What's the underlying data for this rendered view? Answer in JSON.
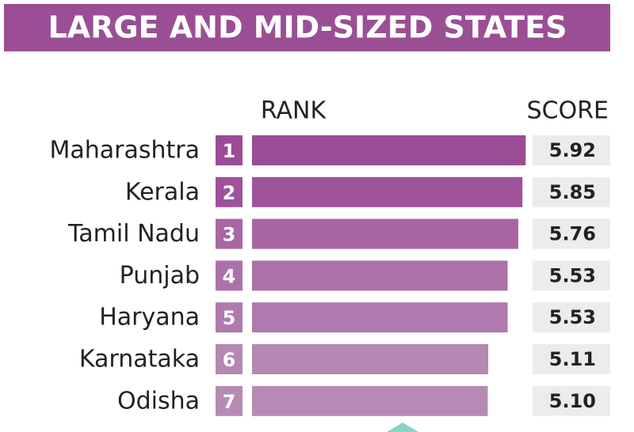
{
  "chart_data": {
    "type": "bar",
    "orientation": "horizontal",
    "title": "LARGE AND MID-SIZED STATES",
    "rank_header": "RANK",
    "score_header": "SCORE",
    "categories": [
      "Maharashtra",
      "Kerala",
      "Tamil Nadu",
      "Punjab",
      "Haryana",
      "Karnataka",
      "Odisha"
    ],
    "ranks": [
      1,
      2,
      3,
      4,
      5,
      6,
      7
    ],
    "values": [
      5.92,
      5.85,
      5.76,
      5.53,
      5.53,
      5.11,
      5.1
    ],
    "value_labels": [
      "5.92",
      "5.85",
      "5.76",
      "5.53",
      "5.53",
      "5.11",
      "5.10"
    ],
    "colors": [
      "#9a4c95",
      "#9d5299",
      "#a966a5",
      "#ad71aa",
      "#b07aae",
      "#b587b3",
      "#b68ab4"
    ],
    "title_color": "#9a4f94",
    "xlim": [
      0,
      6
    ]
  }
}
